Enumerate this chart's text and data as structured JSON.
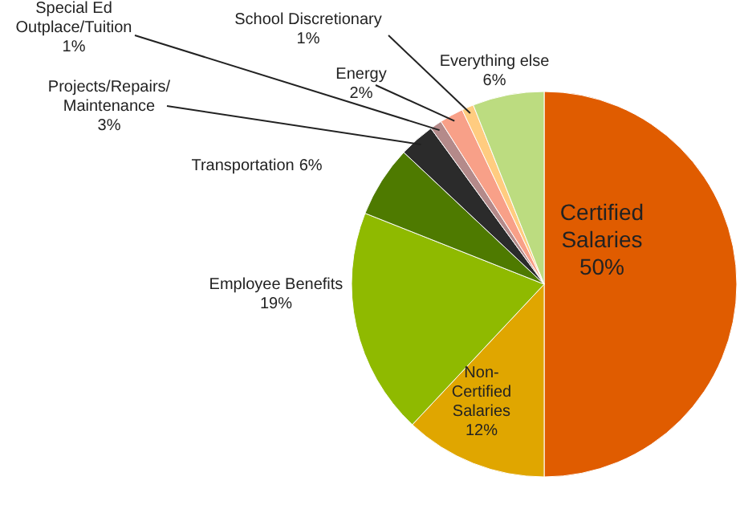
{
  "chart_data": {
    "type": "pie",
    "categories": [
      "Certified Salaries",
      "Non-Certified Salaries",
      "Employee Benefits",
      "Transportation",
      "Projects/Repairs/Maintenance",
      "Special Ed Outplace/Tuition",
      "Energy",
      "School Discretionary",
      "Everything else"
    ],
    "values": [
      50,
      12,
      19,
      6,
      3,
      1,
      2,
      1,
      6
    ],
    "colors": [
      "#e05c00",
      "#e0a600",
      "#8fba00",
      "#4e7a00",
      "#2b2b2b",
      "#b48a8a",
      "#f8a088",
      "#ffcc80",
      "#bcdc80"
    ],
    "value_labels": [
      "50%",
      "12%",
      "19%",
      "6%",
      "3%",
      "1%",
      "2%",
      "1%",
      "6%"
    ]
  }
}
